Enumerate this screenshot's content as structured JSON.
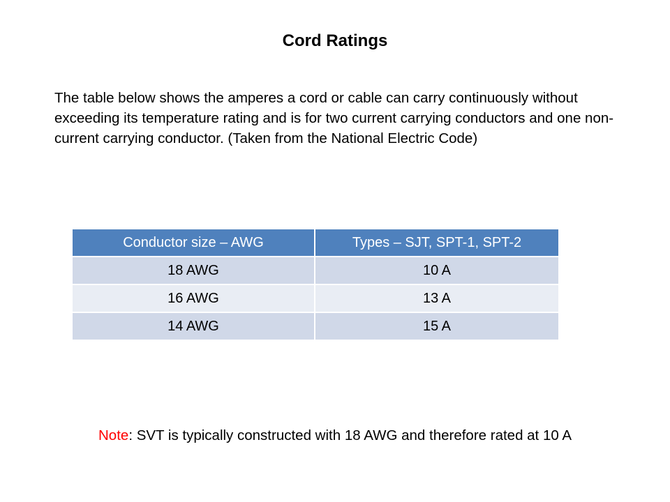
{
  "title": "Cord Ratings",
  "intro_text": "The table below shows the amperes a cord or cable can carry continuously without exceeding its temperature rating and is for two current carrying conductors and one non-current carrying conductor. (Taken from the National Electric Code)",
  "table": {
    "headers": [
      "Conductor size – AWG",
      "Types – SJT, SPT-1, SPT-2"
    ],
    "rows": [
      [
        "18 AWG",
        "10 A"
      ],
      [
        "16 AWG",
        "13 A"
      ],
      [
        "14 AWG",
        "15 A"
      ]
    ],
    "colors": {
      "header_bg": "#4f81bd",
      "row_odd_bg": "#d0d8e8",
      "row_even_bg": "#e9edf4"
    }
  },
  "note": {
    "label": "Note",
    "text": ": SVT is typically constructed with 18 AWG and therefore rated at 10 A",
    "label_color": "#ff0000"
  }
}
